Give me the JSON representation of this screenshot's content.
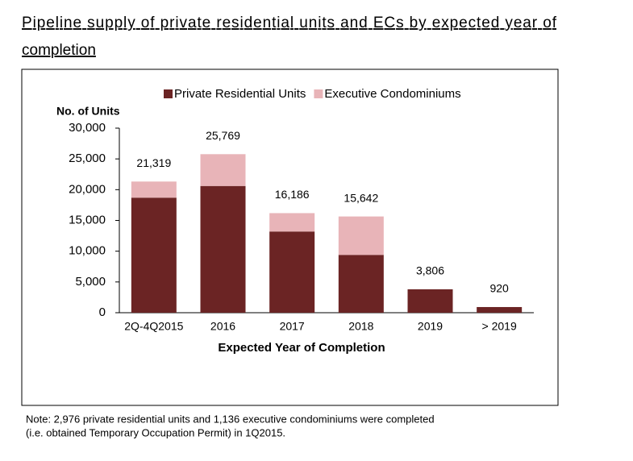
{
  "chart_data": {
    "type": "stacked_bar",
    "title_lines": [
      "Pipeline supply of private residential units and ECs by expected year of",
      "completion"
    ],
    "y_axis_title": "No. of Units",
    "x_axis_title": "Expected Year of Completion",
    "categories": [
      "2Q-4Q2015",
      "2016",
      "2017",
      "2018",
      "2019",
      "> 2019"
    ],
    "series": [
      {
        "name": "Private Residential Units",
        "color": "#6b2424",
        "values": [
          18700,
          20600,
          13200,
          9400,
          3806,
          920
        ]
      },
      {
        "name": "Executive Condominiums",
        "color": "#e8b4b8",
        "values": [
          2619,
          5169,
          2986,
          6242,
          0,
          0
        ]
      }
    ],
    "totals": [
      21319,
      25769,
      16186,
      15642,
      3806,
      920
    ],
    "total_labels": [
      "21,319",
      "25,769",
      "16,186",
      "15,642",
      "3,806",
      "920"
    ],
    "ylim": [
      0,
      30000
    ],
    "yticks": [
      0,
      {
        "value": 5000,
        "label": "5,000"
      },
      {
        "value": 10000,
        "label": "10,000"
      },
      {
        "value": 15000,
        "label": "15,000"
      },
      {
        "value": 20000,
        "label": "20,000"
      },
      {
        "value": 25000,
        "label": "25,000"
      },
      {
        "value": 30000,
        "label": "30,000"
      }
    ],
    "note_lines": [
      "Note:  2,976 private residential units and 1,136 executive condominiums were completed",
      "(i.e. obtained Temporary Occupation Permit) in 1Q2015."
    ]
  }
}
